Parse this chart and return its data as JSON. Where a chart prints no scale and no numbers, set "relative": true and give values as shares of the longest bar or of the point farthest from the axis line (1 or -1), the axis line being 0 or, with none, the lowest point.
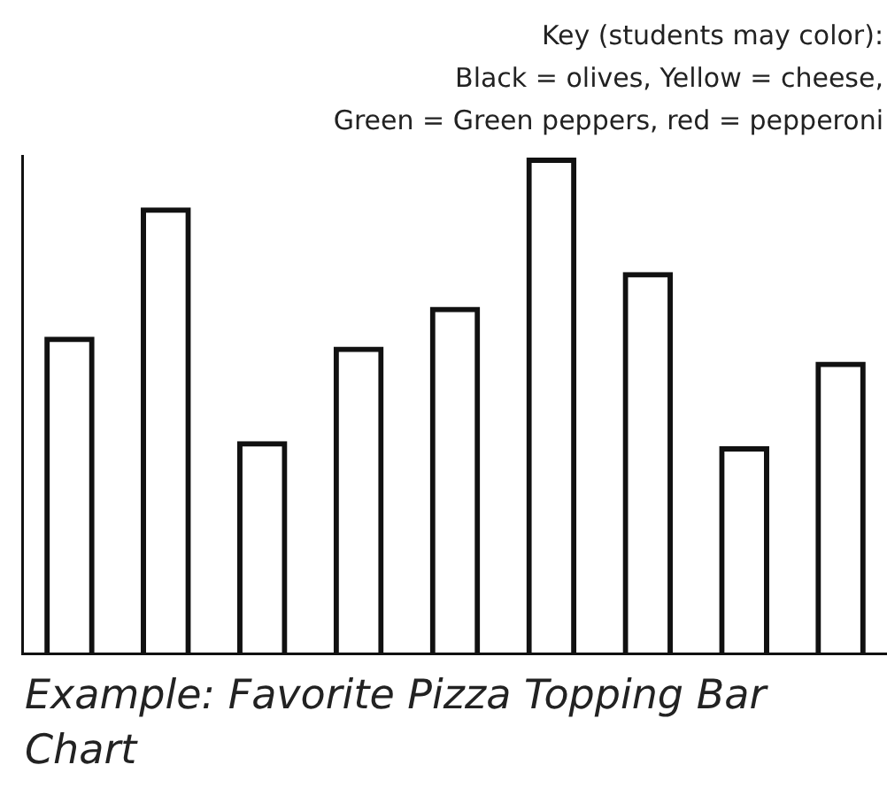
{
  "chart_data": {
    "type": "bar",
    "relative": true,
    "title": "Example: Favorite Pizza Topping Bar Chart",
    "annotations": [
      "Key (students may color):",
      "Black = olives, Yellow = cheese,",
      "Green = Green peppers, red = pepperoni"
    ],
    "categories": [
      null,
      null,
      null,
      null,
      null,
      null,
      null,
      null,
      null
    ],
    "values": [
      0.64,
      0.9,
      0.43,
      0.62,
      0.7,
      1,
      0.77,
      0.42,
      0.59
    ],
    "color": "#111111",
    "grid": false,
    "legend": false
  }
}
